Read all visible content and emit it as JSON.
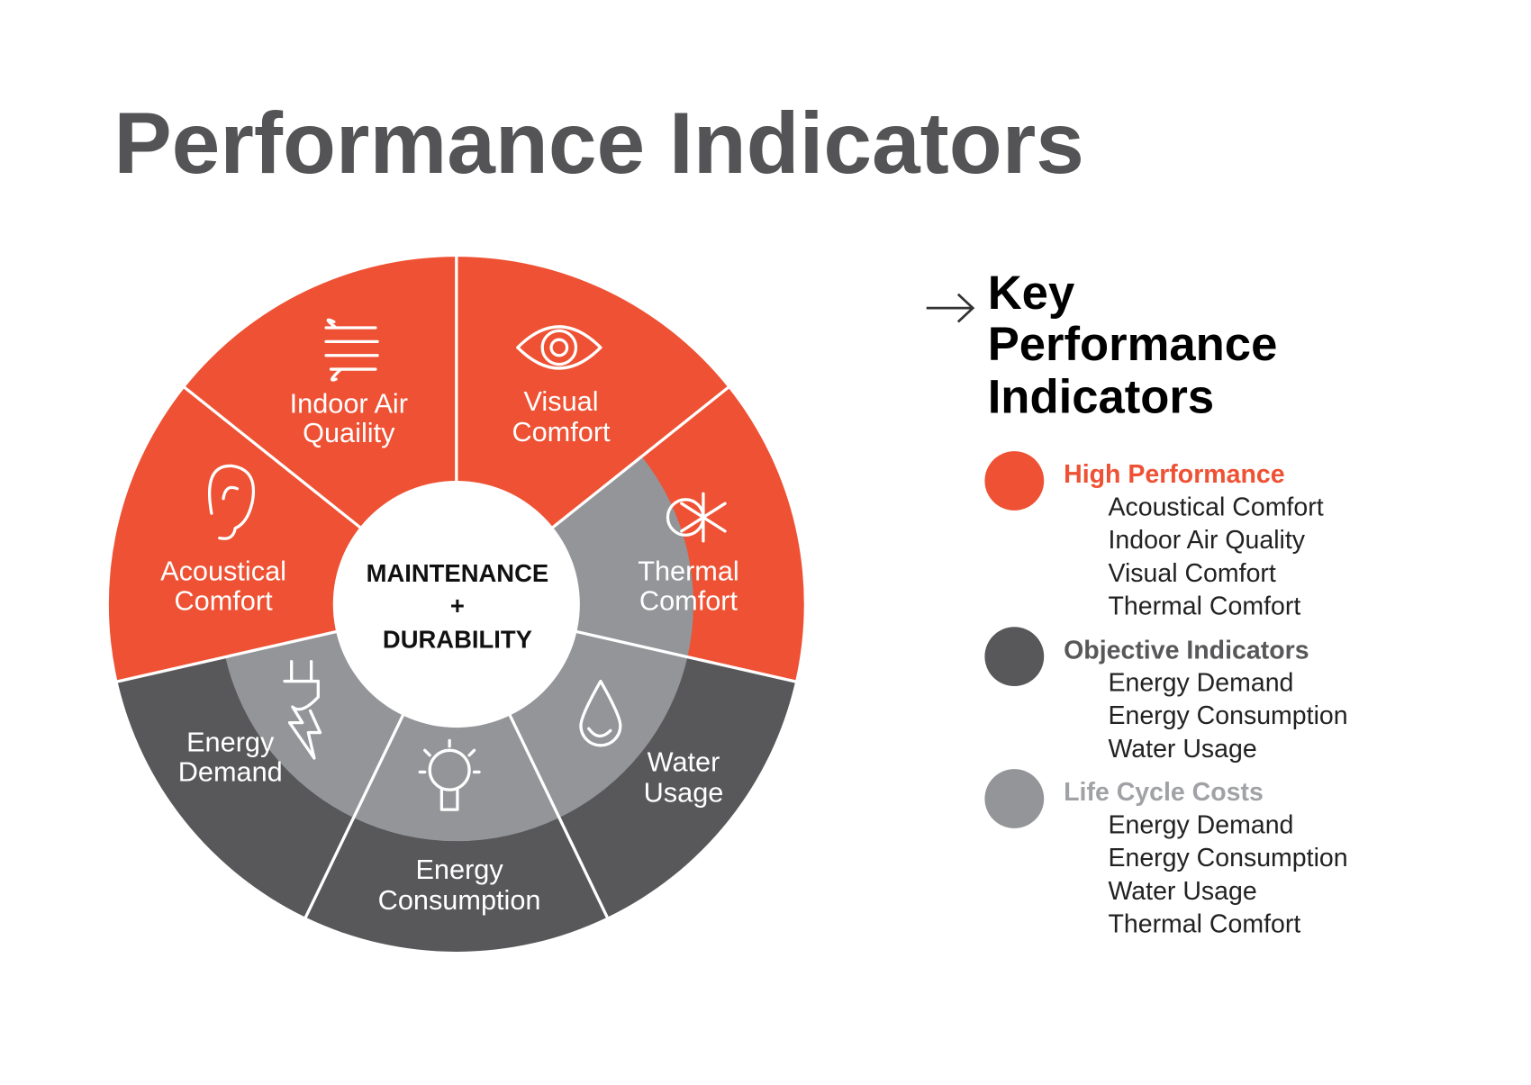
{
  "title": "Performance Indicators",
  "wheel": {
    "center": [
      "MAINTENANCE",
      "+",
      "DURABILITY"
    ],
    "segments": [
      {
        "label": [
          "Visual",
          "Comfort"
        ]
      },
      {
        "label": [
          "Thermal",
          "Comfort"
        ]
      },
      {
        "label": [
          "Water",
          "Usage"
        ]
      },
      {
        "label": [
          "Energy",
          "Consumption"
        ]
      },
      {
        "label": [
          "Energy",
          "Demand"
        ]
      },
      {
        "label": [
          "Acoustical",
          "Comfort"
        ]
      },
      {
        "label": [
          "Indoor Air",
          "Quaility"
        ]
      }
    ]
  },
  "legend": {
    "title": [
      "Key",
      "Performance",
      "Indicators"
    ],
    "groups": [
      {
        "heading": "High Performance",
        "items": [
          "Acoustical Comfort",
          "Indoor Air Quality",
          "Visual Comfort",
          "Thermal Comfort"
        ]
      },
      {
        "heading": "Objective Indicators",
        "items": [
          "Energy Demand",
          "Energy Consumption",
          "Water Usage"
        ]
      },
      {
        "heading": "Life Cycle Costs",
        "items": [
          "Energy Demand",
          "Energy Consumption",
          "Water Usage",
          "Thermal Comfort"
        ]
      }
    ]
  }
}
